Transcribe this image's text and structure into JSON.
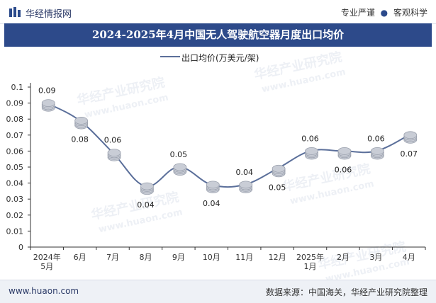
{
  "header": {
    "brand": "华经情报网",
    "tagline_left": "专业严谨",
    "tagline_right": "客观科学"
  },
  "colors": {
    "title_bg": "#2d4a8a",
    "line": "#5b6f9a",
    "marker": "#c9cdd6"
  },
  "chart_data": {
    "type": "line",
    "title": "2024-2025年4月中国无人驾驶航空器月度出口均价",
    "categories": [
      "2024年\n5月",
      "6月",
      "7月",
      "8月",
      "9月",
      "10月",
      "11月",
      "12月",
      "2025年\n1月",
      "2月",
      "3月",
      "4月"
    ],
    "series": [
      {
        "name": "出口均价(万美元/架)",
        "values": [
          0.09,
          0.08,
          0.06,
          0.04,
          0.05,
          0.04,
          0.04,
          0.05,
          0.06,
          0.06,
          0.06,
          0.07
        ]
      }
    ],
    "data_labels": [
      "0.09",
      "0.08",
      "0.06",
      "0.04",
      "0.05",
      "0.04",
      "0.04",
      "0.05",
      "0.06",
      "0.06",
      "0.06",
      "0.07"
    ],
    "label_positions": [
      "above",
      "below",
      "above",
      "below",
      "above",
      "below",
      "above",
      "below",
      "above",
      "below",
      "above",
      "below"
    ],
    "plotted_values": [
      0.09,
      0.079,
      0.059,
      0.038,
      0.05,
      0.039,
      0.039,
      0.049,
      0.06,
      0.06,
      0.06,
      0.07
    ],
    "ylim": [
      0,
      0.1
    ],
    "yticks": [
      "0",
      "0.01",
      "0.02",
      "0.03",
      "0.04",
      "0.05",
      "0.06",
      "0.07",
      "0.08",
      "0.09",
      "0.1"
    ],
    "grid": false,
    "legend": "top-center"
  },
  "watermark": {
    "cn": "华经产业研究院",
    "url": "www.huaon.com"
  },
  "footer": {
    "url": "www.huaon.com",
    "source": "数据来源：中国海关，华经产业研究院整理"
  }
}
